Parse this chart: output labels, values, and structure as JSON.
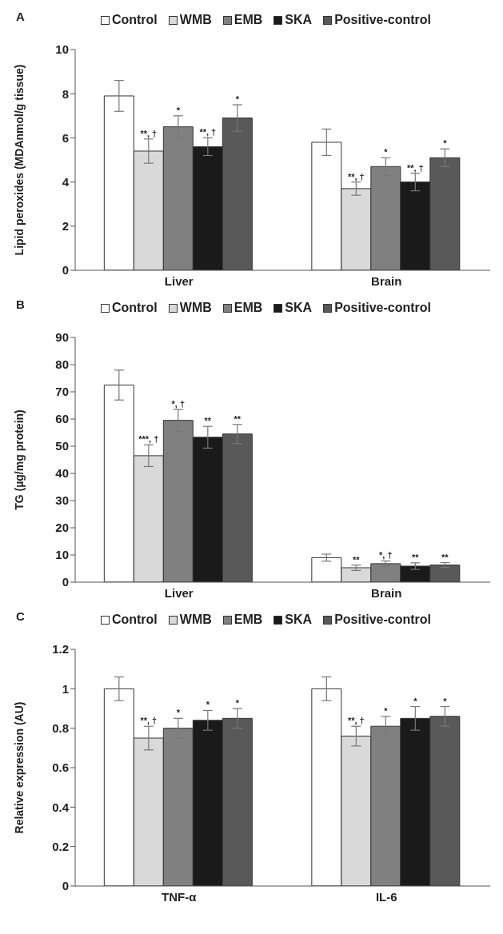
{
  "chart_data": [
    {
      "type": "bar",
      "title": "A",
      "ylabel": "Lipid peroxides (MDAnmol/g tissue)",
      "categories": [
        "Liver",
        "Brain"
      ],
      "ylim": [
        0,
        10
      ],
      "yticks": [
        0,
        2,
        4,
        6,
        8,
        10
      ],
      "grid": false,
      "legend": "top",
      "series": [
        {
          "name": "Control",
          "color": "#ffffff",
          "values": [
            7.9,
            5.8
          ],
          "errors": [
            0.7,
            0.6
          ]
        },
        {
          "name": "WMB",
          "color": "#d9d9d9",
          "values": [
            5.4,
            3.7
          ],
          "errors": [
            0.55,
            0.3
          ],
          "value_labels": [
            "**, †",
            "**, †"
          ]
        },
        {
          "name": "EMB",
          "color": "#808080",
          "values": [
            6.5,
            4.7
          ],
          "errors": [
            0.5,
            0.4
          ],
          "value_labels": [
            "*",
            "*"
          ]
        },
        {
          "name": "SKA",
          "color": "#1a1a1a",
          "values": [
            5.6,
            4.0
          ],
          "errors": [
            0.4,
            0.4
          ],
          "value_labels": [
            "**, †",
            "**, †"
          ]
        },
        {
          "name": "Positive-control",
          "color": "#595959",
          "values": [
            6.9,
            5.1
          ],
          "errors": [
            0.6,
            0.4
          ],
          "value_labels": [
            "*",
            "*"
          ]
        }
      ]
    },
    {
      "type": "bar",
      "title": "B",
      "ylabel": "TG (µg/mg protein)",
      "categories": [
        "Liver",
        "Brain"
      ],
      "ylim": [
        0,
        90
      ],
      "yticks": [
        0,
        10,
        20,
        30,
        40,
        50,
        60,
        70,
        80,
        90
      ],
      "grid": false,
      "legend": "top",
      "series": [
        {
          "name": "Control",
          "color": "#ffffff",
          "values": [
            72.5,
            9
          ],
          "errors": [
            5.5,
            1.3
          ]
        },
        {
          "name": "WMB",
          "color": "#d9d9d9",
          "values": [
            46.5,
            5.3
          ],
          "errors": [
            4,
            1
          ],
          "value_labels": [
            "***, †",
            "**"
          ]
        },
        {
          "name": "EMB",
          "color": "#808080",
          "values": [
            59.5,
            6.8
          ],
          "errors": [
            4,
            1
          ],
          "value_labels": [
            "*, †",
            "*, †"
          ]
        },
        {
          "name": "SKA",
          "color": "#1a1a1a",
          "values": [
            53.3,
            5.9
          ],
          "errors": [
            4,
            1.2
          ],
          "value_labels": [
            "**",
            "**"
          ]
        },
        {
          "name": "Positive-control",
          "color": "#595959",
          "values": [
            54.5,
            6.3
          ],
          "errors": [
            3.5,
            0.9
          ],
          "value_labels": [
            "**",
            "**"
          ]
        }
      ]
    },
    {
      "type": "bar",
      "title": "C",
      "ylabel": "Relative expression (AU)",
      "categories": [
        "TNF-α",
        "IL-6"
      ],
      "ylim": [
        0,
        1.2
      ],
      "yticks": [
        0,
        0.2,
        0.4,
        0.6,
        0.8,
        1,
        1.2
      ],
      "grid": false,
      "legend": "top",
      "series": [
        {
          "name": "Control",
          "color": "#ffffff",
          "values": [
            1,
            1
          ],
          "errors": [
            0.06,
            0.06
          ]
        },
        {
          "name": "WMB",
          "color": "#d9d9d9",
          "values": [
            0.75,
            0.76
          ],
          "errors": [
            0.06,
            0.05
          ],
          "value_labels": [
            "**, †",
            "**, †"
          ]
        },
        {
          "name": "EMB",
          "color": "#808080",
          "values": [
            0.8,
            0.81
          ],
          "errors": [
            0.05,
            0.05
          ],
          "value_labels": [
            "*",
            "*"
          ]
        },
        {
          "name": "SKA",
          "color": "#1a1a1a",
          "values": [
            0.84,
            0.85
          ],
          "errors": [
            0.05,
            0.06
          ],
          "value_labels": [
            "*",
            "*"
          ]
        },
        {
          "name": "Positive-control",
          "color": "#595959",
          "values": [
            0.85,
            0.86
          ],
          "errors": [
            0.05,
            0.05
          ],
          "value_labels": [
            "*",
            "*"
          ]
        }
      ]
    }
  ]
}
